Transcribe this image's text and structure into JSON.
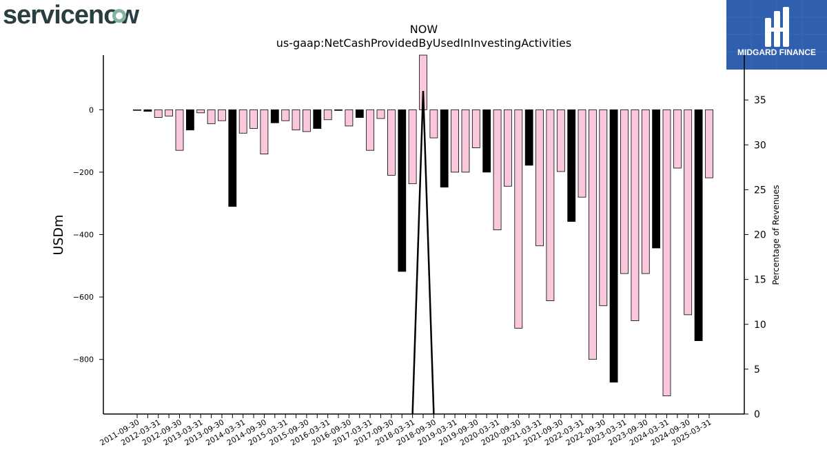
{
  "logos": {
    "left_text": "servicenow",
    "left_color": "#293e40",
    "left_accent": "#81b5a1",
    "right_text": "MIDGARD FINANCE",
    "right_bg": "#2f5fae"
  },
  "chart_data": {
    "type": "bar",
    "title": "NOW",
    "subtitle": "us-gaap:NetCashProvidedByUsedInInvestingActivities",
    "ylabel": "USDm",
    "y2label": "Percentage of Revenues",
    "ylim": [
      -975,
      175
    ],
    "y2lim": [
      0,
      40
    ],
    "yticks": [
      0,
      -200,
      -400,
      -600,
      -800
    ],
    "y2ticks": [
      0,
      5,
      10,
      15,
      20,
      25,
      30,
      35
    ],
    "grid": false,
    "colors": {
      "positive_fill": "#f9c8dc",
      "negative_fill": "#000000",
      "bar_edge": "#000000",
      "line": "#000000"
    },
    "categories": [
      "2011-09-30",
      "2011-12-31",
      "2012-03-31",
      "2012-06-30",
      "2012-09-30",
      "2012-12-31",
      "2013-03-31",
      "2013-06-30",
      "2013-09-30",
      "2013-12-31",
      "2014-03-31",
      "2014-06-30",
      "2014-09-30",
      "2014-12-31",
      "2015-03-31",
      "2015-06-30",
      "2015-09-30",
      "2015-12-31",
      "2016-03-31",
      "2016-06-30",
      "2016-09-30",
      "2016-12-31",
      "2017-03-31",
      "2017-06-30",
      "2017-09-30",
      "2017-12-31",
      "2018-03-31",
      "2018-06-30",
      "2018-09-30",
      "2018-12-31",
      "2019-03-31",
      "2019-06-30",
      "2019-09-30",
      "2019-12-31",
      "2020-03-31",
      "2020-06-30",
      "2020-09-30",
      "2020-12-31",
      "2021-03-31",
      "2021-06-30",
      "2021-09-30",
      "2021-12-31",
      "2022-03-31",
      "2022-06-30",
      "2022-09-30",
      "2022-12-31",
      "2023-03-31",
      "2023-06-30",
      "2023-09-30",
      "2023-12-31",
      "2024-03-31",
      "2024-06-30",
      "2024-09-30",
      "2024-12-31",
      "2025-03-31"
    ],
    "x_tick_labels": [
      "2011-09-30",
      "2012-03-31",
      "2012-09-30",
      "2013-03-31",
      "2013-09-30",
      "2014-03-31",
      "2014-09-30",
      "2015-03-31",
      "2015-09-30",
      "2016-03-31",
      "2016-09-30",
      "2017-03-31",
      "2017-09-30",
      "2018-03-31",
      "2018-09-30",
      "2019-03-31",
      "2019-09-30",
      "2020-03-31",
      "2020-09-30",
      "2021-03-31",
      "2021-09-30",
      "2022-03-31",
      "2022-09-30",
      "2023-03-31",
      "2023-09-30",
      "2024-03-31",
      "2024-09-30",
      "2025-03-31"
    ],
    "series": [
      {
        "name": "USDm",
        "type": "bar",
        "values": [
          -2,
          -5,
          -25,
          -20,
          -130,
          -65,
          -10,
          -45,
          -35,
          -310,
          -75,
          -60,
          -142,
          -42,
          -35,
          -65,
          -70,
          -60,
          -32,
          -2,
          -52,
          -25,
          -130,
          -28,
          -210,
          -518,
          -237,
          175,
          -90,
          -248,
          -200,
          -200,
          -122,
          -200,
          -385,
          -245,
          -700,
          -178,
          -436,
          -612,
          -198,
          -358,
          -280,
          -800,
          -628,
          -873,
          -525,
          -676,
          -525,
          -443,
          -917,
          -187,
          -657,
          -740,
          -218
        ],
        "filled_black": [
          false,
          true,
          false,
          false,
          false,
          true,
          false,
          false,
          false,
          true,
          false,
          false,
          false,
          true,
          false,
          false,
          false,
          true,
          false,
          true,
          false,
          true,
          false,
          false,
          false,
          true,
          false,
          false,
          false,
          true,
          false,
          false,
          false,
          true,
          false,
          false,
          false,
          true,
          false,
          false,
          false,
          true,
          false,
          false,
          false,
          true,
          false,
          false,
          false,
          true,
          false,
          false,
          false,
          true,
          false
        ]
      },
      {
        "name": "Percentage of Revenues",
        "type": "line",
        "values": [
          null,
          null,
          null,
          null,
          null,
          null,
          null,
          null,
          null,
          null,
          null,
          null,
          null,
          null,
          null,
          null,
          null,
          null,
          null,
          null,
          null,
          null,
          null,
          null,
          null,
          null,
          0,
          36,
          0,
          null,
          null,
          null,
          null,
          null,
          null,
          null,
          null,
          null,
          null,
          null,
          null,
          null,
          null,
          null,
          null,
          null,
          null,
          null,
          null,
          null,
          null,
          null,
          null,
          null,
          null
        ]
      }
    ]
  }
}
